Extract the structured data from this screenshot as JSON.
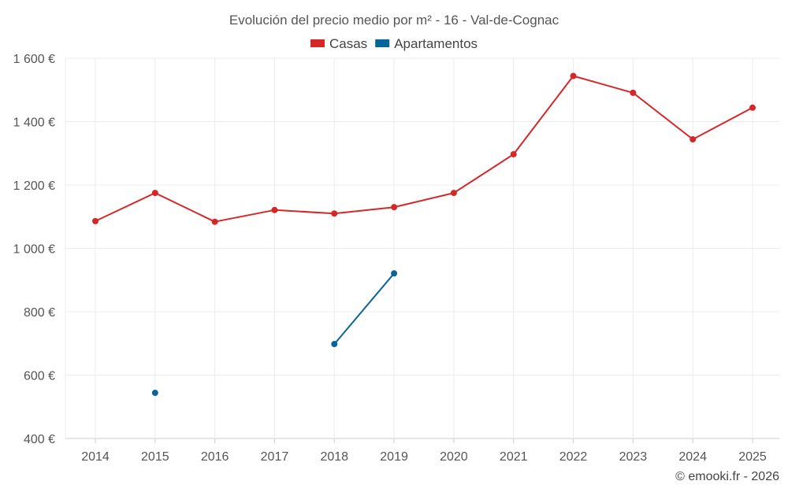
{
  "chart_data": {
    "type": "line",
    "title": "Evolución del precio medio por m² - 16 - Val-de-Cognac",
    "x": [
      "2014",
      "2015",
      "2016",
      "2017",
      "2018",
      "2019",
      "2020",
      "2021",
      "2022",
      "2023",
      "2024",
      "2025"
    ],
    "ylim": [
      400,
      1600
    ],
    "yticks": [
      400,
      600,
      800,
      1000,
      1200,
      1400,
      1600
    ],
    "ytick_labels": [
      "400 €",
      "600 €",
      "800 €",
      "1 000 €",
      "1 200 €",
      "1 400 €",
      "1 600 €"
    ],
    "grid": true,
    "legend_position": "top-center",
    "series": [
      {
        "name": "Casas",
        "color": "#d62728",
        "values": [
          1086,
          1175,
          1084,
          1121,
          1110,
          1130,
          1175,
          1297,
          1544,
          1491,
          1344,
          1444
        ]
      },
      {
        "name": "Apartamentos",
        "color": "#08659a",
        "values": [
          null,
          544,
          null,
          null,
          698,
          921,
          null,
          null,
          null,
          null,
          null,
          null
        ]
      }
    ]
  },
  "credit": "© emooki.fr - 2026"
}
